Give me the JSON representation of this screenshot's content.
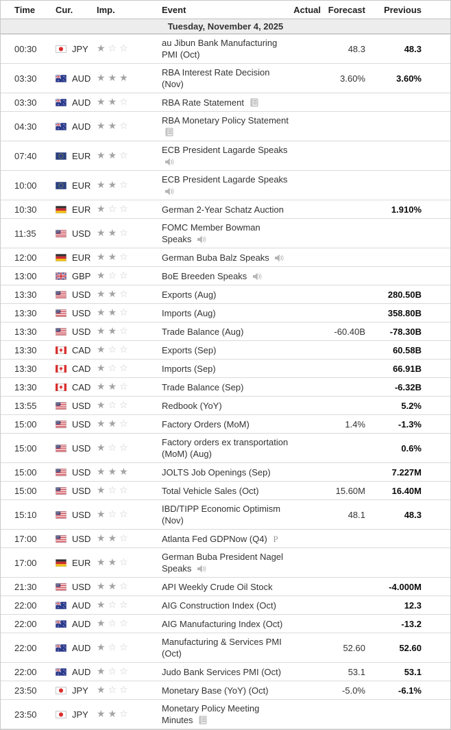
{
  "table": {
    "columns": [
      "Time",
      "Cur.",
      "Imp.",
      "Event",
      "Actual",
      "Forecast",
      "Previous"
    ],
    "date_header": "Tuesday, November 4, 2025",
    "importance_max": 3,
    "rows": [
      {
        "time": "00:30",
        "currency": "JPY",
        "flag": "jp",
        "importance": 1,
        "event": "au Jibun Bank Manufacturing PMI (Oct)",
        "event_icon": "",
        "actual": "",
        "forecast": "48.3",
        "previous": "48.3"
      },
      {
        "time": "03:30",
        "currency": "AUD",
        "flag": "au",
        "importance": 3,
        "event": "RBA Interest Rate Decision (Nov)",
        "event_icon": "",
        "actual": "",
        "forecast": "3.60%",
        "previous": "3.60%"
      },
      {
        "time": "03:30",
        "currency": "AUD",
        "flag": "au",
        "importance": 2,
        "event": "RBA Rate Statement",
        "event_icon": "report",
        "actual": "",
        "forecast": "",
        "previous": ""
      },
      {
        "time": "04:30",
        "currency": "AUD",
        "flag": "au",
        "importance": 2,
        "event": "RBA Monetary Policy Statement",
        "event_icon": "report",
        "actual": "",
        "forecast": "",
        "previous": ""
      },
      {
        "time": "07:40",
        "currency": "EUR",
        "flag": "eu",
        "importance": 2,
        "event": "ECB President Lagarde Speaks",
        "event_icon": "speaker",
        "actual": "",
        "forecast": "",
        "previous": ""
      },
      {
        "time": "10:00",
        "currency": "EUR",
        "flag": "eu",
        "importance": 2,
        "event": "ECB President Lagarde Speaks",
        "event_icon": "speaker",
        "actual": "",
        "forecast": "",
        "previous": ""
      },
      {
        "time": "10:30",
        "currency": "EUR",
        "flag": "de",
        "importance": 1,
        "event": "German 2-Year Schatz Auction",
        "event_icon": "",
        "actual": "",
        "forecast": "",
        "previous": "1.910%"
      },
      {
        "time": "11:35",
        "currency": "USD",
        "flag": "us",
        "importance": 2,
        "event": "FOMC Member Bowman Speaks",
        "event_icon": "speaker",
        "actual": "",
        "forecast": "",
        "previous": ""
      },
      {
        "time": "12:00",
        "currency": "EUR",
        "flag": "de",
        "importance": 2,
        "event": "German Buba Balz Speaks",
        "event_icon": "speaker",
        "actual": "",
        "forecast": "",
        "previous": ""
      },
      {
        "time": "13:00",
        "currency": "GBP",
        "flag": "gb",
        "importance": 1,
        "event": "BoE Breeden Speaks",
        "event_icon": "speaker",
        "actual": "",
        "forecast": "",
        "previous": ""
      },
      {
        "time": "13:30",
        "currency": "USD",
        "flag": "us",
        "importance": 2,
        "event": "Exports (Aug)",
        "event_icon": "",
        "actual": "",
        "forecast": "",
        "previous": "280.50B"
      },
      {
        "time": "13:30",
        "currency": "USD",
        "flag": "us",
        "importance": 2,
        "event": "Imports (Aug)",
        "event_icon": "",
        "actual": "",
        "forecast": "",
        "previous": "358.80B"
      },
      {
        "time": "13:30",
        "currency": "USD",
        "flag": "us",
        "importance": 2,
        "event": "Trade Balance (Aug)",
        "event_icon": "",
        "actual": "",
        "forecast": "-60.40B",
        "previous": "-78.30B"
      },
      {
        "time": "13:30",
        "currency": "CAD",
        "flag": "ca",
        "importance": 1,
        "event": "Exports (Sep)",
        "event_icon": "",
        "actual": "",
        "forecast": "",
        "previous": "60.58B"
      },
      {
        "time": "13:30",
        "currency": "CAD",
        "flag": "ca",
        "importance": 1,
        "event": "Imports (Sep)",
        "event_icon": "",
        "actual": "",
        "forecast": "",
        "previous": "66.91B"
      },
      {
        "time": "13:30",
        "currency": "CAD",
        "flag": "ca",
        "importance": 2,
        "event": "Trade Balance (Sep)",
        "event_icon": "",
        "actual": "",
        "forecast": "",
        "previous": "-6.32B"
      },
      {
        "time": "13:55",
        "currency": "USD",
        "flag": "us",
        "importance": 1,
        "event": "Redbook (YoY)",
        "event_icon": "",
        "actual": "",
        "forecast": "",
        "previous": "5.2%"
      },
      {
        "time": "15:00",
        "currency": "USD",
        "flag": "us",
        "importance": 2,
        "event": "Factory Orders (MoM)",
        "event_icon": "",
        "actual": "",
        "forecast": "1.4%",
        "previous": "-1.3%"
      },
      {
        "time": "15:00",
        "currency": "USD",
        "flag": "us",
        "importance": 1,
        "event": "Factory orders ex transportation (MoM) (Aug)",
        "event_icon": "",
        "actual": "",
        "forecast": "",
        "previous": "0.6%"
      },
      {
        "time": "15:00",
        "currency": "USD",
        "flag": "us",
        "importance": 3,
        "event": "JOLTS Job Openings (Sep)",
        "event_icon": "",
        "actual": "",
        "forecast": "",
        "previous": "7.227M"
      },
      {
        "time": "15:00",
        "currency": "USD",
        "flag": "us",
        "importance": 1,
        "event": "Total Vehicle Sales (Oct)",
        "event_icon": "",
        "actual": "",
        "forecast": "15.60M",
        "previous": "16.40M"
      },
      {
        "time": "15:10",
        "currency": "USD",
        "flag": "us",
        "importance": 1,
        "event": "IBD/TIPP Economic Optimism (Nov)",
        "event_icon": "",
        "actual": "",
        "forecast": "48.1",
        "previous": "48.3"
      },
      {
        "time": "17:00",
        "currency": "USD",
        "flag": "us",
        "importance": 2,
        "event": "Atlanta Fed GDPNow (Q4)",
        "event_icon": "preliminary",
        "actual": "",
        "forecast": "",
        "previous": ""
      },
      {
        "time": "17:00",
        "currency": "EUR",
        "flag": "de",
        "importance": 2,
        "event": "German Buba President Nagel Speaks",
        "event_icon": "speaker",
        "actual": "",
        "forecast": "",
        "previous": ""
      },
      {
        "time": "21:30",
        "currency": "USD",
        "flag": "us",
        "importance": 2,
        "event": "API Weekly Crude Oil Stock",
        "event_icon": "",
        "actual": "",
        "forecast": "",
        "previous": "-4.000M"
      },
      {
        "time": "22:00",
        "currency": "AUD",
        "flag": "au",
        "importance": 1,
        "event": "AIG Construction Index (Oct)",
        "event_icon": "",
        "actual": "",
        "forecast": "",
        "previous": "12.3"
      },
      {
        "time": "22:00",
        "currency": "AUD",
        "flag": "au",
        "importance": 1,
        "event": "AIG Manufacturing Index (Oct)",
        "event_icon": "",
        "actual": "",
        "forecast": "",
        "previous": "-13.2"
      },
      {
        "time": "22:00",
        "currency": "AUD",
        "flag": "au",
        "importance": 1,
        "event": "Manufacturing & Services PMI (Oct)",
        "event_icon": "",
        "actual": "",
        "forecast": "52.60",
        "previous": "52.60"
      },
      {
        "time": "22:00",
        "currency": "AUD",
        "flag": "au",
        "importance": 1,
        "event": "Judo Bank Services PMI (Oct)",
        "event_icon": "",
        "actual": "",
        "forecast": "53.1",
        "previous": "53.1"
      },
      {
        "time": "23:50",
        "currency": "JPY",
        "flag": "jp",
        "importance": 1,
        "event": "Monetary Base (YoY) (Oct)",
        "event_icon": "",
        "actual": "",
        "forecast": "-5.0%",
        "previous": "-6.1%"
      },
      {
        "time": "23:50",
        "currency": "JPY",
        "flag": "jp",
        "importance": 2,
        "event": "Monetary Policy Meeting Minutes",
        "event_icon": "report",
        "actual": "",
        "forecast": "",
        "previous": ""
      }
    ]
  },
  "colors": {
    "date_row_bg": "#ededed",
    "row_border": "#dadada",
    "star_filled": "#a3a3a3",
    "star_empty": "#c9c9c9",
    "previous_text": "#0a0a0a",
    "event_text": "#333333"
  }
}
